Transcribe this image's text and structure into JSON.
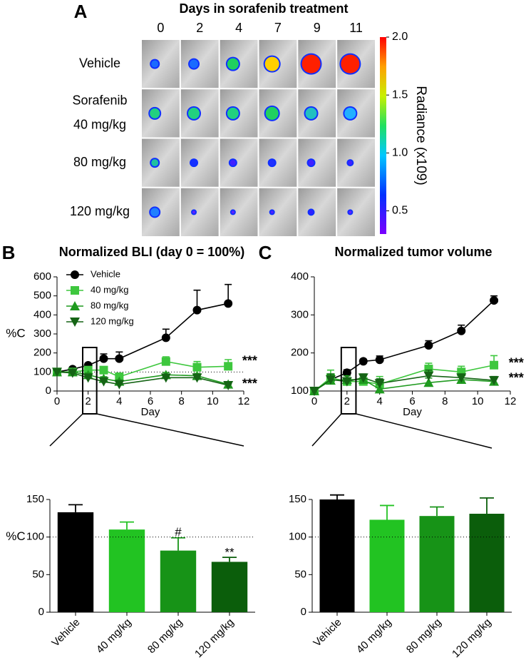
{
  "chart_data": [
    {
      "type": "image_grid",
      "panel": "A",
      "title": "Days in sorafenib treatment",
      "columns": [
        0,
        2,
        4,
        7,
        9,
        11
      ],
      "rows": [
        [
          "Vehicle"
        ],
        [
          "Sorafenib",
          "40 mg/kg"
        ],
        [
          "80 mg/kg"
        ],
        [
          "120 mg/kg"
        ]
      ],
      "colorbar_label": "Radiance (x109)",
      "clim": [
        0.3,
        2.0
      ],
      "cticks": [
        {
          "value": 0.5,
          "label": "0.5"
        },
        {
          "value": 1,
          "label": "1.0"
        },
        {
          "value": 1.5,
          "label": "1.5"
        },
        {
          "value": 2,
          "label": "2.0"
        }
      ]
    },
    {
      "type": "line",
      "panel": "B",
      "title": "Normalized BLI (day 0 = 100%)",
      "xlabel": "Day",
      "ylabel": "%C",
      "x": [
        0,
        1,
        2,
        3,
        4,
        7,
        9,
        11
      ],
      "xlim": [
        0,
        12
      ],
      "xticks": [
        0,
        2,
        4,
        6,
        8,
        10,
        12
      ],
      "ylim": [
        0,
        600
      ],
      "yticks": [
        0,
        100,
        200,
        300,
        400,
        500,
        600
      ],
      "reference_line": 100,
      "legend": "upper left",
      "series": [
        {
          "name": "Vehicle",
          "color": "#000000",
          "marker": "circle",
          "values": [
            100,
            115,
            135,
            170,
            170,
            280,
            425,
            460
          ],
          "errors": [
            10,
            8,
            10,
            25,
            35,
            45,
            105,
            100
          ]
        },
        {
          "name": "40 mg/kg",
          "color": "#3ec73e",
          "marker": "square",
          "values": [
            100,
            100,
            110,
            110,
            75,
            155,
            125,
            130
          ],
          "errors": [
            10,
            10,
            10,
            10,
            10,
            25,
            30,
            35
          ]
        },
        {
          "name": "80 mg/kg",
          "color": "#1f9a1f",
          "marker": "triangle-up",
          "values": [
            100,
            100,
            85,
            65,
            50,
            85,
            80,
            35
          ],
          "errors": [
            8,
            8,
            10,
            10,
            8,
            12,
            12,
            8
          ]
        },
        {
          "name": "120 mg/kg",
          "color": "#156415",
          "marker": "triangle-down",
          "values": [
            100,
            95,
            70,
            50,
            35,
            70,
            70,
            30
          ],
          "errors": [
            8,
            8,
            8,
            8,
            6,
            10,
            10,
            6
          ]
        }
      ],
      "annotations": [
        {
          "text": "***",
          "x": 11.9,
          "y": 155
        },
        {
          "text": "***",
          "x": 11.9,
          "y": 35
        }
      ]
    },
    {
      "type": "bar",
      "ylabel": "%C",
      "categories": [
        "Vehicle",
        "40 mg/kg",
        "80 mg/kg",
        "120 mg/kg"
      ],
      "values": [
        133,
        110,
        82,
        67
      ],
      "errors": [
        10,
        10,
        17,
        6
      ],
      "colors": [
        "#000000",
        "#22c322",
        "#179317",
        "#0b5e0b"
      ],
      "ylim": [
        0,
        150
      ],
      "yticks": [
        0,
        50,
        100,
        150
      ],
      "reference_line": 100,
      "annotations": [
        {
          "text": "#",
          "category": 2,
          "y": 106
        },
        {
          "text": "**",
          "category": 3,
          "y": 79
        }
      ]
    },
    {
      "type": "line",
      "panel": "C",
      "title": "Normalized tumor volume",
      "xlabel": "Day",
      "x": [
        0,
        1,
        2,
        3,
        4,
        7,
        9,
        11
      ],
      "xlim": [
        0,
        12
      ],
      "xticks": [
        0,
        2,
        4,
        6,
        8,
        10,
        12
      ],
      "ylim": [
        100,
        400
      ],
      "yticks": [
        100,
        200,
        300,
        400
      ],
      "reference_line": 100,
      "series": [
        {
          "name": "Vehicle",
          "color": "#000000",
          "marker": "circle",
          "values": [
            100,
            130,
            148,
            178,
            182,
            220,
            258,
            338
          ],
          "errors": [
            5,
            10,
            8,
            5,
            10,
            12,
            15,
            12
          ]
        },
        {
          "name": "40 mg/kg",
          "color": "#3ec73e",
          "marker": "square",
          "values": [
            100,
            135,
            125,
            125,
            118,
            158,
            150,
            168
          ],
          "errors": [
            5,
            20,
            10,
            10,
            20,
            15,
            15,
            25
          ]
        },
        {
          "name": "80 mg/kg",
          "color": "#1f9a1f",
          "marker": "triangle-up",
          "values": [
            100,
            128,
            130,
            130,
            105,
            122,
            130,
            125
          ],
          "errors": [
            5,
            15,
            10,
            10,
            12,
            12,
            10,
            10
          ]
        },
        {
          "name": "120 mg/kg",
          "color": "#156415",
          "marker": "triangle-down",
          "values": [
            100,
            130,
            125,
            135,
            120,
            140,
            135,
            128
          ],
          "errors": [
            5,
            15,
            10,
            10,
            12,
            15,
            10,
            10
          ]
        }
      ],
      "annotations": [
        {
          "text": "***",
          "x": 11.9,
          "y": 172
        },
        {
          "text": "***",
          "x": 11.9,
          "y": 132
        }
      ]
    },
    {
      "type": "bar",
      "categories": [
        "Vehicle",
        "40 mg/kg",
        "80 mg/kg",
        "120 mg/kg"
      ],
      "values": [
        150,
        123,
        128,
        131
      ],
      "errors": [
        6,
        19,
        12,
        21
      ],
      "colors": [
        "#000000",
        "#22c322",
        "#179317",
        "#0b5e0b"
      ],
      "ylim": [
        0,
        150
      ],
      "yticks": [
        0,
        50,
        100,
        150
      ],
      "reference_line": 100
    }
  ]
}
